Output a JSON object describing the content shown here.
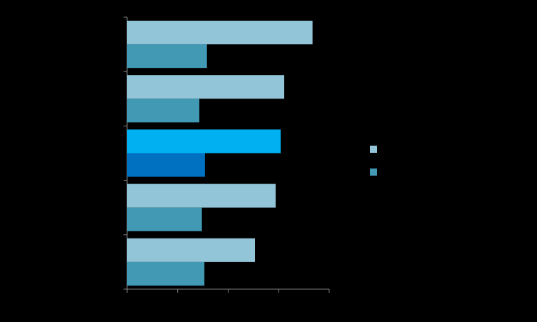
{
  "chart_data": {
    "type": "hbar",
    "categories": [
      null,
      null,
      null,
      null,
      null
    ],
    "series": [
      {
        "color": "#92c5d8",
        "highlight_color": "#00b0f0",
        "values": [
          3.67,
          3.11,
          3.04,
          2.94,
          2.53
        ]
      },
      {
        "color": "#4199b4",
        "highlight_color": "#0070c0",
        "values": [
          1.58,
          1.43,
          1.54,
          1.48,
          1.53
        ]
      }
    ],
    "highlight_index": 2,
    "xlim": [
      0,
      4
    ],
    "xticks": [
      0,
      1,
      2,
      3,
      4
    ],
    "grid": false,
    "legend": "right"
  }
}
